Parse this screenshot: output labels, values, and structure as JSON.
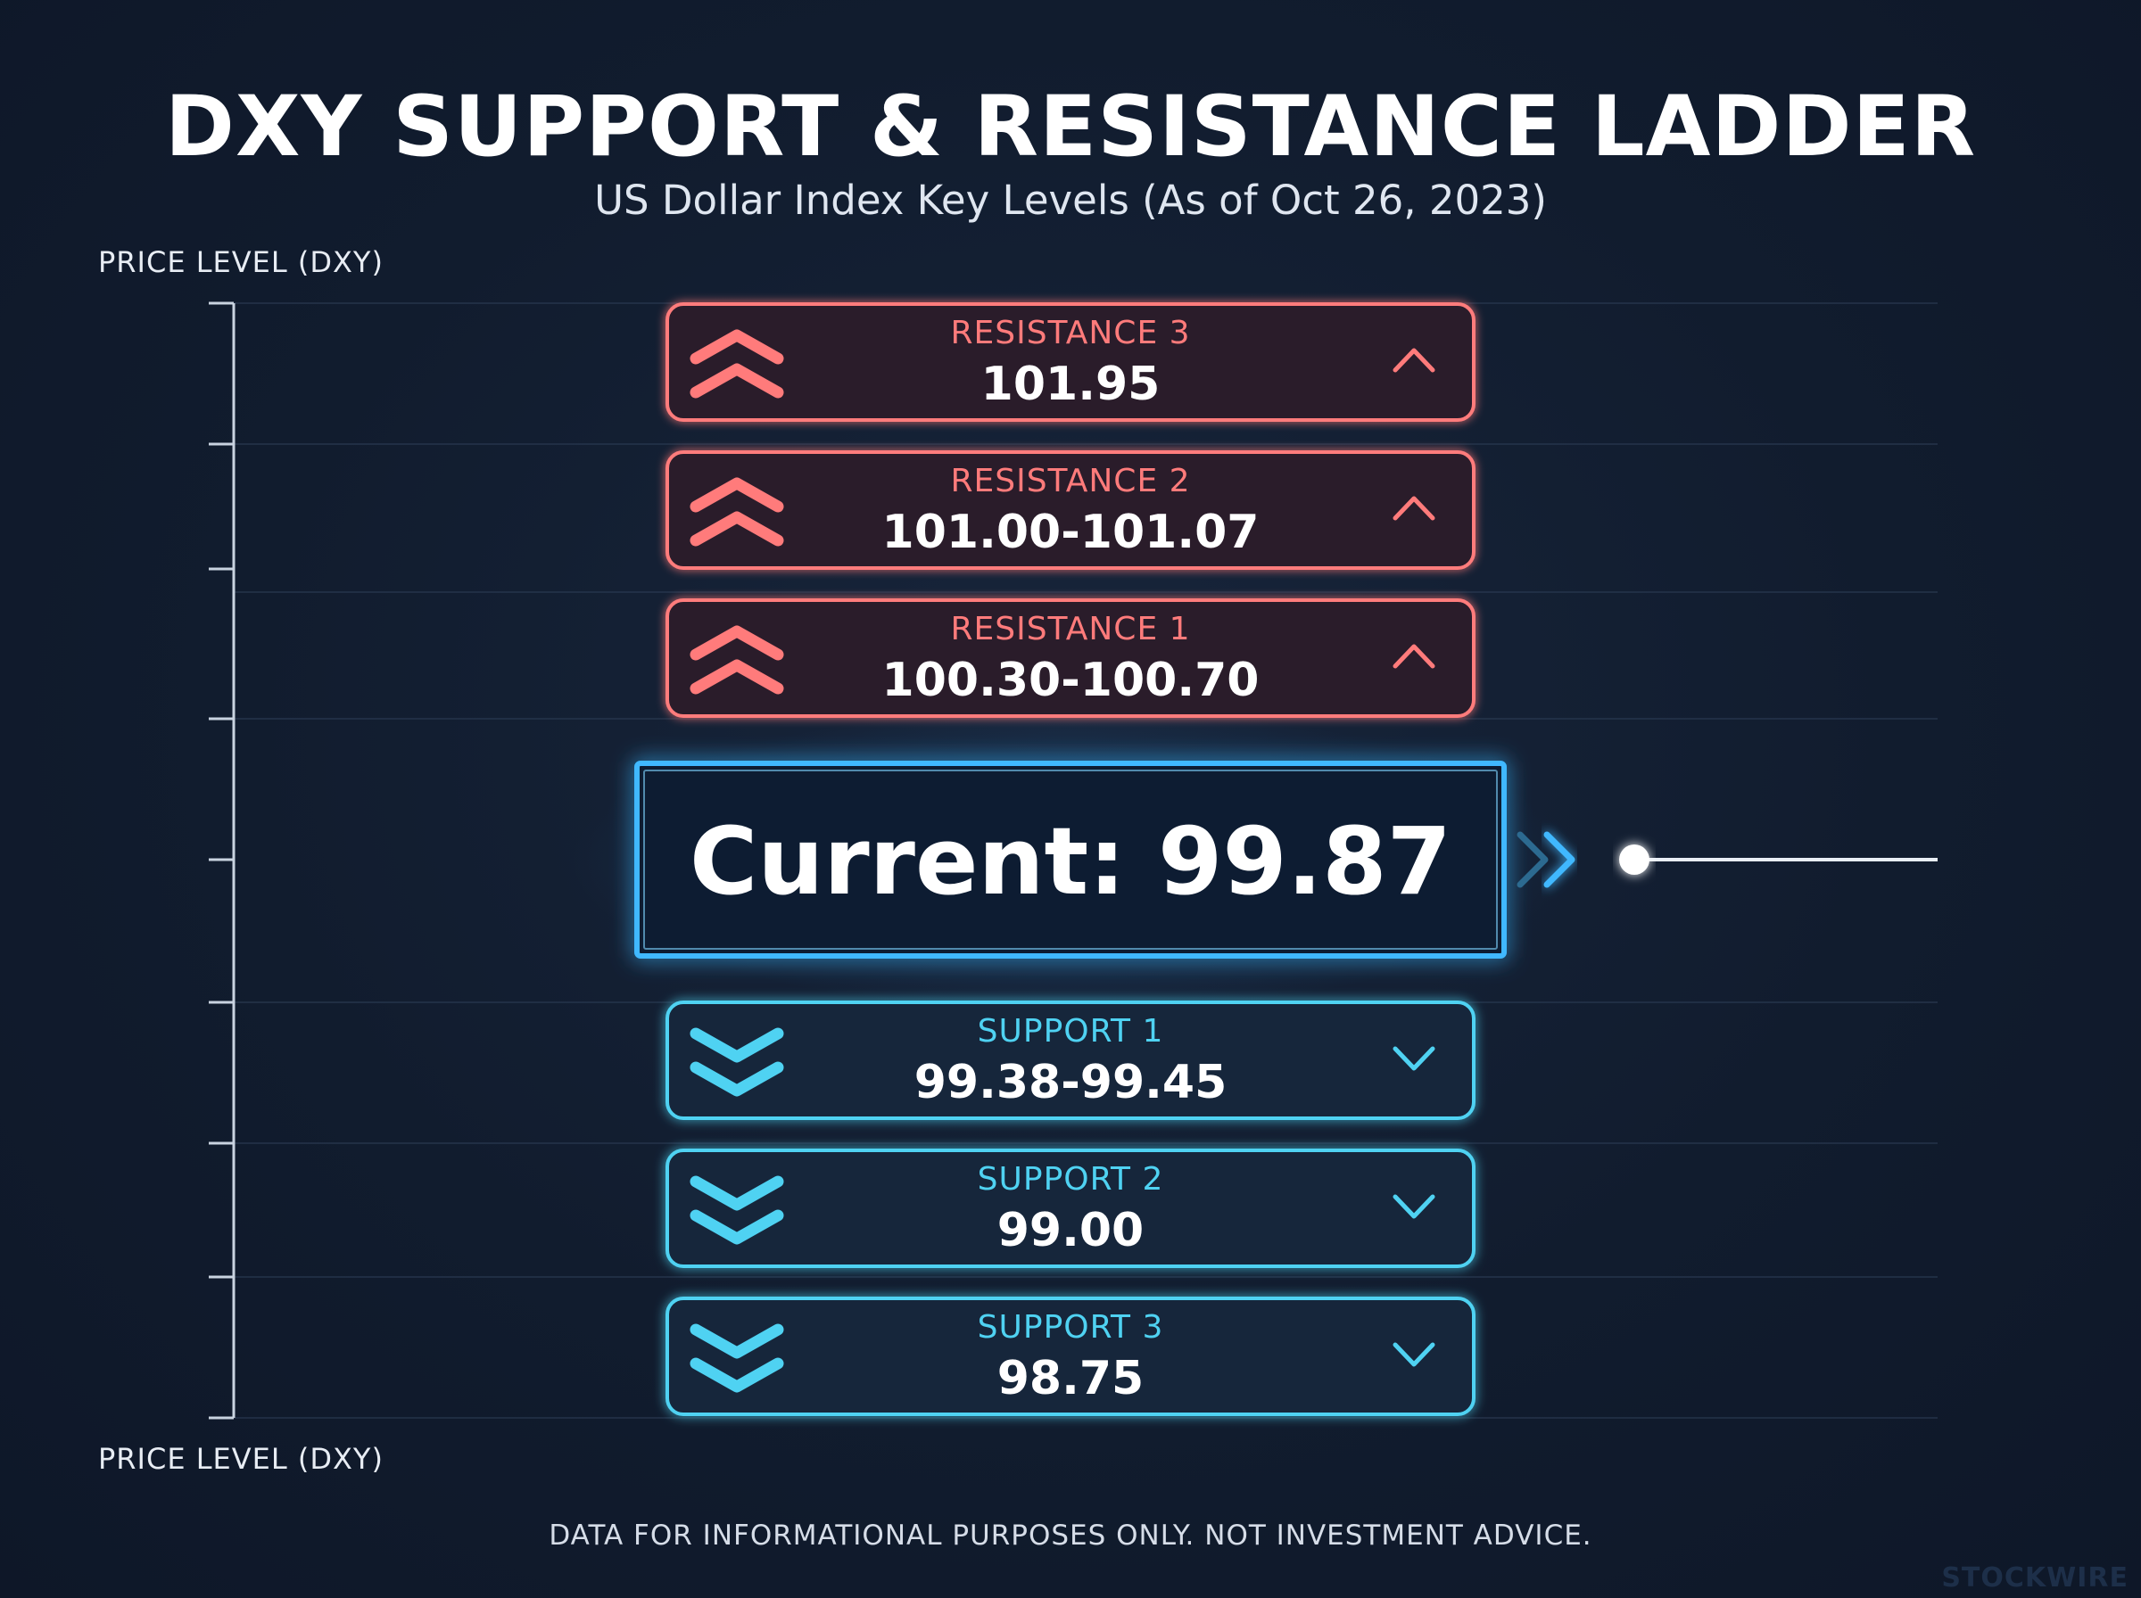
{
  "header": {
    "title": "DXY SUPPORT & RESISTANCE LADDER",
    "subtitle": "US Dollar Index Key Levels (As of Oct 26, 2023)"
  },
  "axis": {
    "label_top": "PRICE LEVEL (DXY)",
    "label_bottom": "PRICE LEVEL (DXY)"
  },
  "footer": {
    "disclaimer": "DATA FOR INFORMATIONAL PURPOSES ONLY. NOT INVESTMENT ADVICE.",
    "watermark": "STOCKWIRE"
  },
  "colors": {
    "background": "#121d30",
    "resistance": "#ff7b7b",
    "support": "#4fd2f2",
    "current": "#3fb8ff",
    "text": "#ffffff"
  },
  "chart_data": {
    "type": "table",
    "title": "DXY SUPPORT & RESISTANCE LADDER",
    "subtitle": "US Dollar Index Key Levels (As of Oct 26, 2023)",
    "ylabel": "PRICE LEVEL (DXY)",
    "current": {
      "label": "Current: 99.87",
      "value": 99.87
    },
    "levels": [
      {
        "kind": "resistance",
        "name": "RESISTANCE 3",
        "value_text": "101.95",
        "low": 101.95,
        "high": 101.95
      },
      {
        "kind": "resistance",
        "name": "RESISTANCE 2",
        "value_text": "101.00-101.07",
        "low": 101.0,
        "high": 101.07
      },
      {
        "kind": "resistance",
        "name": "RESISTANCE 1",
        "value_text": "100.30-100.70",
        "low": 100.3,
        "high": 100.7
      },
      {
        "kind": "support",
        "name": "SUPPORT 1",
        "value_text": "99.38-99.45",
        "low": 99.38,
        "high": 99.45
      },
      {
        "kind": "support",
        "name": "SUPPORT 2",
        "value_text": "99.00",
        "low": 99.0,
        "high": 99.0
      },
      {
        "kind": "support",
        "name": "SUPPORT 3",
        "value_text": "98.75",
        "low": 98.75,
        "high": 98.75
      }
    ]
  }
}
